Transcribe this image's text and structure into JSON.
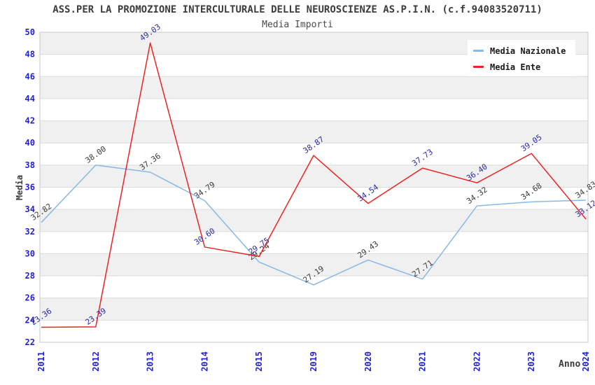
{
  "header": {
    "title": "ASS.PER LA PROMOZIONE INTERCULTURALE DELLE NEUROSCIENZE AS.P.I.N. (c.f.94083520711)",
    "subtitle": "Media Importi"
  },
  "legend": {
    "items": [
      {
        "label": "Media Nazionale",
        "color": "#88b8e8"
      },
      {
        "label": "Media Ente",
        "color": "#ee2222"
      }
    ]
  },
  "axes": {
    "y_title": "Media",
    "x_title": "Anno",
    "tick_color": "#2222cc"
  },
  "chart_data": {
    "type": "line",
    "title": "ASS.PER LA PROMOZIONE INTERCULTURALE DELLE NEUROSCIENZE AS.P.I.N. (c.f.94083520711)",
    "subtitle": "Media Importi",
    "categories": [
      "2011",
      "2012",
      "2013",
      "2014",
      "2015",
      "2019",
      "2020",
      "2021",
      "2022",
      "2023",
      "2024"
    ],
    "series": [
      {
        "name": "Media Nazionale",
        "color": "#88b8e8",
        "label_color": "#3a3a3a",
        "values": [
          32.82,
          38.0,
          37.36,
          34.79,
          29.24,
          27.19,
          29.43,
          27.71,
          34.32,
          34.68,
          34.83
        ]
      },
      {
        "name": "Media Ente",
        "color": "#ee2222",
        "label_color": "#2a2aa8",
        "values": [
          23.36,
          23.39,
          49.03,
          30.6,
          29.75,
          38.87,
          34.54,
          37.73,
          36.4,
          39.05,
          33.12
        ]
      }
    ],
    "xlabel": "Anno",
    "ylabel": "Media",
    "ylim": [
      22,
      50
    ],
    "y_tick_step": 2,
    "grid": "horizontal-bands",
    "band_colors": [
      "#f0f0f0",
      "#ffffff"
    ],
    "grid_color": "#dcdcdc",
    "border_color": "#c8c8c8",
    "legend_position": "top-right",
    "data_labels": true,
    "data_label_rotation": -35
  }
}
